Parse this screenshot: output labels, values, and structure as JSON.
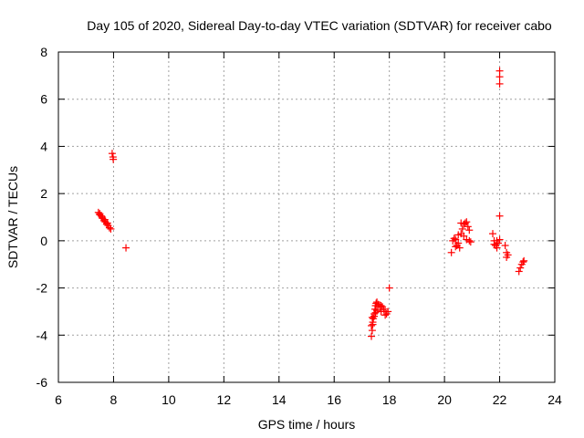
{
  "chart_data": {
    "type": "scatter",
    "title": "Day 105 of 2020, Sidereal Day-to-day VTEC variation (SDTVAR) for receiver cabo",
    "xlabel": "GPS time / hours",
    "ylabel": "SDTVAR / TECUs",
    "xlim": [
      6,
      24
    ],
    "ylim": [
      -6,
      8
    ],
    "x_ticks": [
      "6",
      "8",
      "10",
      "12",
      "14",
      "16",
      "18",
      "20",
      "22",
      "24"
    ],
    "y_ticks": [
      "-6",
      "-4",
      "-2",
      "0",
      "2",
      "4",
      "6",
      "8"
    ],
    "grid": true,
    "marker": "+",
    "color": "#ff0000",
    "series": [
      {
        "x": [
          7.45,
          7.5,
          7.55,
          7.6,
          7.65,
          7.7,
          7.75,
          7.8,
          7.85,
          7.9,
          7.5,
          7.58,
          7.68,
          7.78,
          7.95,
          7.98,
          7.99,
          8.45,
          17.35,
          17.38,
          17.4,
          17.42,
          17.45,
          17.48,
          17.5,
          17.52,
          17.55,
          17.6,
          17.65,
          17.7,
          17.75,
          17.8,
          17.85,
          17.9,
          17.95,
          17.4,
          17.45,
          17.5,
          17.35,
          17.38,
          17.55,
          17.7,
          17.85,
          18.0,
          20.25,
          20.3,
          20.35,
          20.4,
          20.45,
          20.5,
          20.55,
          20.6,
          20.65,
          20.7,
          20.75,
          20.8,
          20.85,
          20.9,
          20.95,
          20.6,
          20.7,
          20.8,
          20.9,
          20.4,
          20.5,
          21.75,
          21.8,
          21.85,
          21.9,
          21.95,
          22.0,
          21.8,
          21.9,
          22.0,
          22.0,
          22.0,
          22.0,
          22.2,
          22.25,
          22.25,
          22.3,
          22.7,
          22.75,
          22.8,
          22.85,
          22.88
        ],
        "y": [
          1.2,
          1.1,
          1.05,
          0.95,
          0.85,
          0.8,
          0.7,
          0.65,
          0.55,
          0.5,
          1.15,
          1.0,
          0.9,
          0.75,
          3.7,
          3.55,
          3.45,
          -0.3,
          -4.05,
          -3.8,
          -3.55,
          -3.3,
          -3.1,
          -2.9,
          -2.75,
          -2.65,
          -2.6,
          -2.7,
          -2.8,
          -2.75,
          -2.8,
          -2.9,
          -3.0,
          -3.1,
          -3.0,
          -3.45,
          -3.2,
          -3.05,
          -3.6,
          -3.25,
          -2.95,
          -3.0,
          -3.15,
          -2.0,
          -0.5,
          0.0,
          0.1,
          0.05,
          -0.2,
          -0.1,
          -0.3,
          0.3,
          0.5,
          0.7,
          0.75,
          0.8,
          0.6,
          0.45,
          -0.05,
          0.75,
          0.2,
          0.05,
          0.0,
          -0.25,
          0.25,
          0.3,
          0.0,
          -0.2,
          -0.3,
          -0.1,
          0.05,
          -0.15,
          0.0,
          1.05,
          7.2,
          6.95,
          6.65,
          -0.2,
          -0.5,
          -0.7,
          -0.6,
          -1.3,
          -1.15,
          -1.0,
          -0.9,
          -0.85
        ]
      }
    ]
  }
}
